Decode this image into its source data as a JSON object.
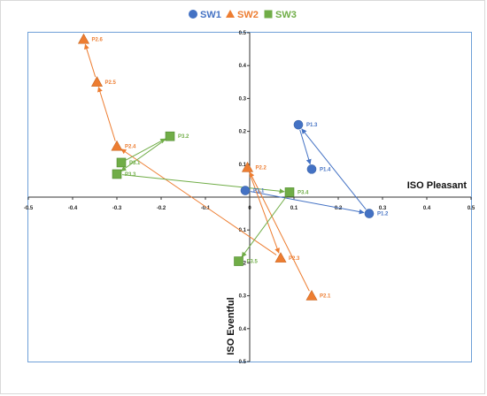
{
  "chart_data": {
    "type": "scatter",
    "xlim": [
      -0.5,
      0.5
    ],
    "ylim": [
      -0.5,
      0.5
    ],
    "x_ticks": [
      "-0.5",
      "-0.4",
      "-0.3",
      "-0.2",
      "-0.1",
      "0",
      "0.1",
      "0.2",
      "0.3",
      "0.4",
      "0.5"
    ],
    "y_ticks": [
      "0.5",
      "0.4",
      "0.3",
      "0.2",
      "0.1",
      "0",
      "-0.1",
      "-0.2",
      "-0.3",
      "-0.4",
      "-0.5"
    ],
    "y_tick_labels_shown": [
      "0.5",
      "0.4",
      "0.3",
      "0.2",
      "0.1",
      "0.1",
      "0.2",
      "0.3",
      "0.4",
      "0.5"
    ],
    "xlabel": "ISO Pleasant",
    "ylabel": "ISO Eventful",
    "grid": false,
    "legend_position": "top",
    "series": [
      {
        "name": "SW1",
        "marker": "circle",
        "color": "#4472C4",
        "points": [
          {
            "label": "P1.1",
            "x": -0.01,
            "y": 0.02
          },
          {
            "label": "P1.2",
            "x": 0.27,
            "y": -0.05
          },
          {
            "label": "P1.3",
            "x": 0.11,
            "y": 0.22
          },
          {
            "label": "P1.4",
            "x": 0.14,
            "y": 0.085
          }
        ],
        "arrows": [
          [
            0,
            1
          ],
          [
            1,
            2
          ],
          [
            2,
            3
          ]
        ]
      },
      {
        "name": "SW2",
        "marker": "triangle",
        "color": "#ED7D31",
        "points": [
          {
            "label": "P2.1",
            "x": 0.14,
            "y": -0.3
          },
          {
            "label": "P2.2",
            "x": -0.005,
            "y": 0.09
          },
          {
            "label": "P2.3",
            "x": 0.07,
            "y": -0.185
          },
          {
            "label": "P2.4",
            "x": -0.3,
            "y": 0.155
          },
          {
            "label": "P2.5",
            "x": -0.345,
            "y": 0.35
          },
          {
            "label": "P2.6",
            "x": -0.375,
            "y": 0.48
          }
        ],
        "arrows": [
          [
            0,
            1
          ],
          [
            1,
            2
          ],
          [
            2,
            3
          ],
          [
            3,
            4
          ],
          [
            4,
            5
          ]
        ]
      },
      {
        "name": "SW3",
        "marker": "square",
        "color": "#70AD47",
        "points": [
          {
            "label": "P3.1",
            "x": -0.29,
            "y": 0.105
          },
          {
            "label": "P3.2",
            "x": -0.18,
            "y": 0.185
          },
          {
            "label": "P3.3",
            "x": -0.3,
            "y": 0.07
          },
          {
            "label": "P3.4",
            "x": 0.09,
            "y": 0.015
          },
          {
            "label": "P3.5",
            "x": -0.025,
            "y": -0.195
          }
        ],
        "arrows": [
          [
            0,
            1
          ],
          [
            1,
            2
          ],
          [
            2,
            3
          ],
          [
            3,
            4
          ]
        ]
      }
    ]
  }
}
